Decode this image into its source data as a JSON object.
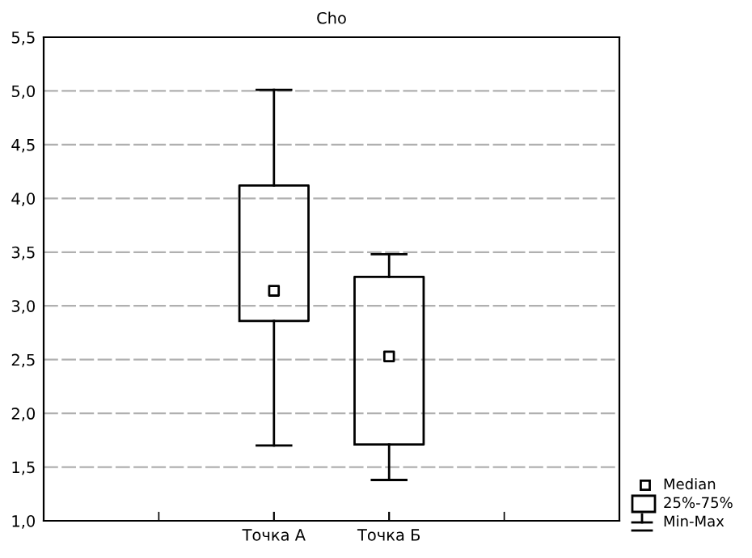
{
  "chart_data": {
    "type": "box",
    "title": "Cho",
    "categories": [
      "Точка А",
      "Точка Б"
    ],
    "boxes": [
      {
        "low": 1.7,
        "q1": 2.86,
        "median": 3.14,
        "q3": 4.12,
        "high": 5.01
      },
      {
        "low": 1.38,
        "q1": 1.71,
        "median": 2.53,
        "q3": 3.27,
        "high": 3.48
      }
    ],
    "ylim": [
      1.0,
      5.5
    ],
    "yticks": [
      {
        "value": 1.0,
        "label": "1,0"
      },
      {
        "value": 1.5,
        "label": "1,5"
      },
      {
        "value": 2.0,
        "label": "2,0"
      },
      {
        "value": 2.5,
        "label": "2,5"
      },
      {
        "value": 3.0,
        "label": "3,0"
      },
      {
        "value": 3.5,
        "label": "3,5"
      },
      {
        "value": 4.0,
        "label": "4,0"
      },
      {
        "value": 4.5,
        "label": "4,5"
      },
      {
        "value": 5.0,
        "label": "5,0"
      },
      {
        "value": 5.5,
        "label": "5,5"
      }
    ],
    "grid": "y",
    "marker": "square",
    "annotations": [
      "Median",
      "25%-75%",
      "Min-Max"
    ]
  }
}
